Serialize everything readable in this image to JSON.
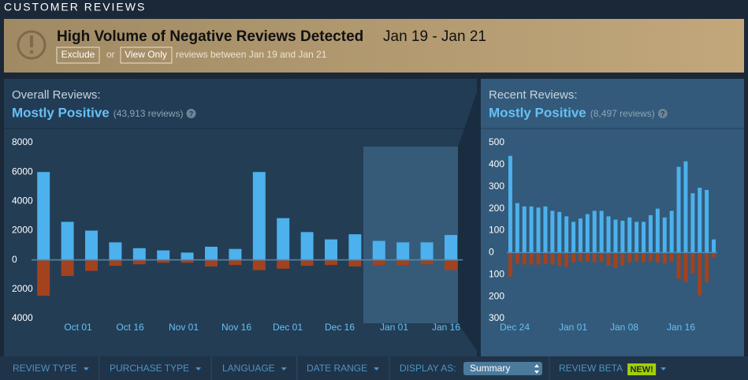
{
  "header": {
    "title": "CUSTOMER REVIEWS"
  },
  "alert": {
    "title": "High Volume of Negative Reviews Detected",
    "dates": "Jan 19 - Jan 21",
    "exclude": "Exclude",
    "or": "or",
    "view_only": "View Only",
    "note": "reviews between Jan 19 and Jan 21"
  },
  "chart_data": [
    {
      "type": "bar",
      "label": "Overall Reviews:",
      "rating": "Mostly Positive",
      "count": "(43,913 reviews)",
      "help": "?",
      "categories": [
        null,
        null,
        null,
        null,
        null,
        null,
        null,
        null,
        null,
        null,
        null,
        null,
        null,
        null,
        null,
        null,
        null,
        null
      ],
      "series": [
        {
          "color": "#4cb1ec",
          "values": [
            6000,
            2600,
            2000,
            1200,
            800,
            650,
            500,
            900,
            750,
            6000,
            2850,
            1900,
            1400,
            1750,
            1300,
            1200,
            1200,
            1700
          ]
        },
        {
          "color": "#a3421e",
          "values": [
            -2450,
            -1100,
            -750,
            -400,
            -300,
            -200,
            -200,
            -450,
            -350,
            -700,
            -600,
            -400,
            -350,
            -450,
            -350,
            -350,
            -300,
            -700
          ]
        }
      ],
      "xlabels": [
        "Oct 01",
        "Oct 16",
        "Nov 01",
        "Nov 16",
        "Dec 01",
        "Dec 16",
        "Jan 01",
        "Jan 16"
      ],
      "ylim": [
        -4000,
        8000
      ],
      "yticks": [
        8000,
        6000,
        4000,
        2000,
        0,
        {
          "value": -2000,
          "label": "2000"
        },
        {
          "value": -4000,
          "label": "4000"
        }
      ]
    },
    {
      "type": "bar",
      "label": "Recent Reviews:",
      "rating": "Mostly Positive",
      "count": "(8,497 reviews)",
      "help": "?",
      "categories": [
        null,
        null,
        null,
        null,
        null,
        null,
        null,
        null,
        null,
        null,
        null,
        null,
        null,
        null,
        null,
        null,
        null,
        null,
        null,
        null,
        null,
        null,
        null,
        null,
        null,
        null,
        null,
        null,
        null,
        null
      ],
      "series": [
        {
          "color": "#4cb1ec",
          "values": [
            440,
            225,
            210,
            210,
            205,
            210,
            190,
            185,
            165,
            140,
            155,
            175,
            190,
            190,
            165,
            150,
            145,
            160,
            140,
            140,
            170,
            200,
            160,
            190,
            390,
            415,
            270,
            295,
            285,
            60
          ]
        },
        {
          "color": "#a3421e",
          "values": [
            -110,
            -50,
            -55,
            -55,
            -55,
            -50,
            -55,
            -60,
            -65,
            -45,
            -40,
            -40,
            -45,
            -40,
            -60,
            -70,
            -60,
            -45,
            -40,
            -45,
            -40,
            -45,
            -50,
            -40,
            -120,
            -135,
            -95,
            -195,
            -135,
            -20
          ]
        }
      ],
      "xlabels": [
        "Dec 24",
        "Jan 01",
        "Jan 08",
        "Jan 16"
      ],
      "ylim": [
        -300,
        500
      ],
      "yticks": [
        500,
        400,
        300,
        200,
        100,
        0,
        {
          "value": -100,
          "label": "100"
        },
        {
          "value": -200,
          "label": "200"
        },
        {
          "value": -300,
          "label": "300"
        }
      ]
    }
  ],
  "filters": [
    "REVIEW TYPE",
    "PURCHASE TYPE",
    "LANGUAGE",
    "DATE RANGE"
  ],
  "display_as": "DISPLAY AS:",
  "display_value": "Summary",
  "review_beta": "REVIEW BETA",
  "new": "NEW!"
}
